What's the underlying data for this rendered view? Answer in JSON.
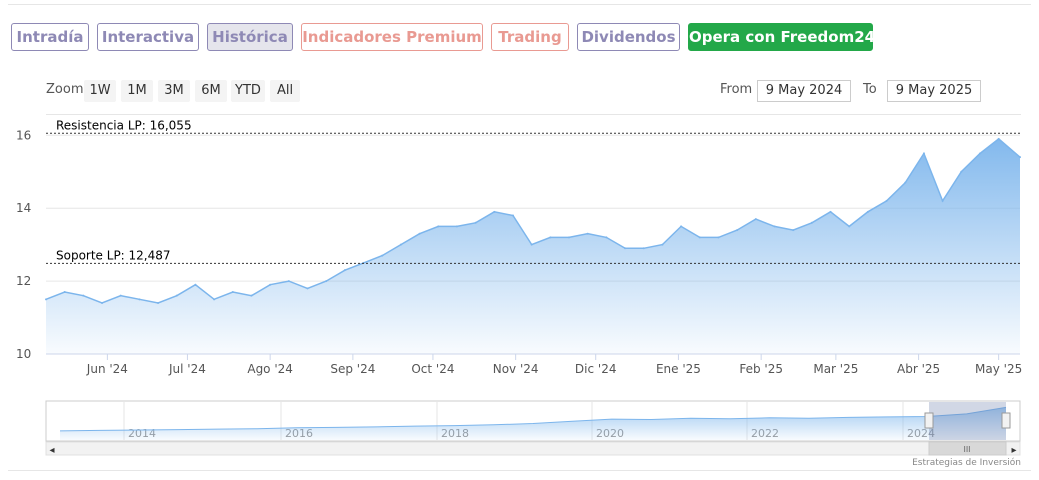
{
  "tabs": [
    {
      "label": "Intradía",
      "style": "purple"
    },
    {
      "label": "Interactiva",
      "style": "purple"
    },
    {
      "label": "Histórica",
      "style": "active"
    },
    {
      "label": "Indicadores Premium",
      "style": "red"
    },
    {
      "label": "Trading",
      "style": "red"
    },
    {
      "label": "Dividendos",
      "style": "purple"
    },
    {
      "label": "Opera con Freedom24",
      "style": "green"
    }
  ],
  "toolbar": {
    "zoom_label": "Zoom",
    "zoom_buttons": [
      "1W",
      "1M",
      "3M",
      "6M",
      "YTD",
      "All"
    ],
    "from_label": "From",
    "from_value": "9 May 2024",
    "to_label": "To",
    "to_value": "9 May 2025"
  },
  "colors": {
    "line": "#7cb5ec",
    "area_top": "#7cb5ec",
    "tab_purple": "#8e89b5",
    "tab_red": "#e99a92",
    "tab_green": "#23a849"
  },
  "chart_data": {
    "type": "area",
    "xlabel": "",
    "ylabel": "",
    "ylim": [
      10,
      16.2
    ],
    "y_ticks": [
      "10",
      "12",
      "14",
      "16"
    ],
    "x_ticks": [
      "Jun '24",
      "Jul '24",
      "Ago '24",
      "Sep '24",
      "Oct '24",
      "Nov '24",
      "Dic '24",
      "Ene '25",
      "Feb '25",
      "Mar '25",
      "Abr '25",
      "May '25"
    ],
    "x": [
      "2024-05-09",
      "2024-05-16",
      "2024-05-23",
      "2024-05-30",
      "2024-06-06",
      "2024-06-13",
      "2024-06-20",
      "2024-06-27",
      "2024-07-04",
      "2024-07-11",
      "2024-07-18",
      "2024-07-25",
      "2024-08-01",
      "2024-08-08",
      "2024-08-15",
      "2024-08-22",
      "2024-08-29",
      "2024-09-05",
      "2024-09-12",
      "2024-09-19",
      "2024-09-26",
      "2024-10-03",
      "2024-10-10",
      "2024-10-17",
      "2024-10-24",
      "2024-10-31",
      "2024-11-07",
      "2024-11-14",
      "2024-11-21",
      "2024-11-28",
      "2024-12-05",
      "2024-12-12",
      "2024-12-19",
      "2024-12-26",
      "2025-01-02",
      "2025-01-09",
      "2025-01-16",
      "2025-01-23",
      "2025-01-30",
      "2025-02-06",
      "2025-02-13",
      "2025-02-20",
      "2025-02-27",
      "2025-03-06",
      "2025-03-13",
      "2025-03-20",
      "2025-03-27",
      "2025-04-03",
      "2025-04-10",
      "2025-04-17",
      "2025-04-24",
      "2025-05-01",
      "2025-05-09"
    ],
    "values": [
      11.5,
      11.7,
      11.6,
      11.4,
      11.6,
      11.5,
      11.4,
      11.6,
      11.9,
      11.5,
      11.7,
      11.6,
      11.9,
      12.0,
      11.8,
      12.0,
      12.3,
      12.5,
      12.7,
      13.0,
      13.3,
      13.5,
      13.5,
      13.6,
      13.9,
      13.8,
      13.0,
      13.2,
      13.2,
      13.3,
      13.2,
      12.9,
      12.9,
      13.0,
      13.5,
      13.2,
      13.2,
      13.4,
      13.7,
      13.5,
      13.4,
      13.6,
      13.9,
      13.5,
      13.9,
      14.2,
      14.7,
      15.5,
      14.2,
      15.0,
      15.5,
      15.9,
      15.4
    ],
    "reference_lines": [
      {
        "label": "Resistencia LP: 16,055",
        "value": 16.055
      },
      {
        "label": "Soporte LP: 12,487",
        "value": 12.487
      }
    ],
    "grid": true,
    "legend": "none"
  },
  "navigator": {
    "years": [
      "2014",
      "2016",
      "2018",
      "2020",
      "2022",
      "2024"
    ],
    "scroll_grip": "III",
    "left_arrow": "◂",
    "right_arrow": "▸"
  },
  "credits": "Estrategias de Inversión"
}
